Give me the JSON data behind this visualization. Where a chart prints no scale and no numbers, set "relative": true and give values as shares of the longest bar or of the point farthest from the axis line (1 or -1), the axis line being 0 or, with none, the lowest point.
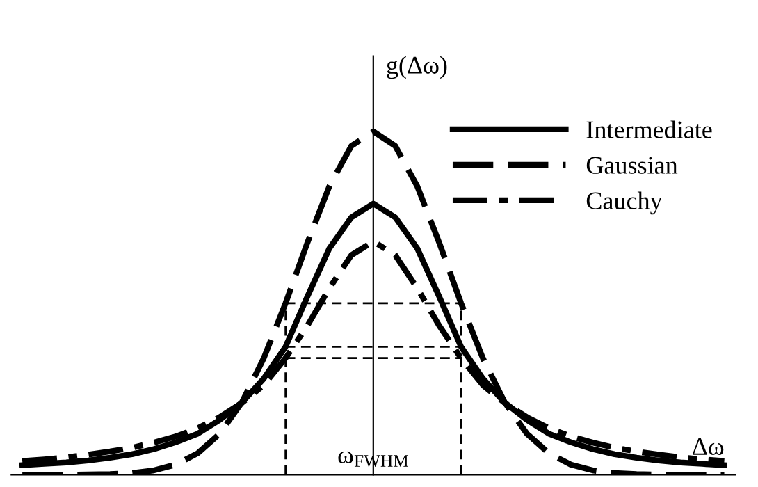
{
  "chart_data": {
    "type": "line",
    "relative": true,
    "xlabel": "Δω",
    "ylabel": "g(Δω)",
    "legend": "top right",
    "annotations": [
      "ω$_{FWHM}$"
    ],
    "categories": [
      null,
      null,
      null,
      null,
      null,
      null,
      null,
      null,
      null,
      null,
      null,
      null,
      null,
      null,
      null,
      null,
      null,
      null,
      null,
      null,
      null,
      null,
      null,
      null,
      null,
      null,
      null,
      null,
      null,
      null,
      null,
      null,
      null
    ],
    "series": [
      {
        "name": "Intermediate",
        "color": "#000000",
        "line_style": "solid",
        "values": [
          0.028,
          0.032,
          0.036,
          0.042,
          0.05,
          0.06,
          0.075,
          0.095,
          0.12,
          0.16,
          0.21,
          0.28,
          0.373,
          0.52,
          0.66,
          0.75,
          0.79,
          0.75,
          0.66,
          0.52,
          0.373,
          0.28,
          0.21,
          0.16,
          0.12,
          0.095,
          0.075,
          0.06,
          0.05,
          0.042,
          0.036,
          0.032,
          0.028
        ]
      },
      {
        "name": "Gaussian",
        "color": "#000000",
        "line_style": "dashed",
        "values": [
          0,
          0,
          0,
          0.001,
          0.002,
          0.005,
          0.013,
          0.03,
          0.063,
          0.12,
          0.21,
          0.339,
          0.5,
          0.677,
          0.841,
          0.958,
          1,
          0.958,
          0.841,
          0.677,
          0.5,
          0.339,
          0.21,
          0.12,
          0.063,
          0.03,
          0.013,
          0.005,
          0.002,
          0.001,
          0,
          0,
          0
        ]
      },
      {
        "name": "Cauchy",
        "color": "#000000",
        "line_style": "dashdot",
        "values": [
          0.04,
          0.045,
          0.051,
          0.059,
          0.068,
          0.079,
          0.094,
          0.112,
          0.136,
          0.168,
          0.209,
          0.261,
          0.34,
          0.435,
          0.544,
          0.64,
          0.68,
          0.64,
          0.544,
          0.435,
          0.34,
          0.261,
          0.209,
          0.168,
          0.136,
          0.112,
          0.094,
          0.079,
          0.068,
          0.059,
          0.051,
          0.045,
          0.04
        ]
      },
      {
        "color": "#000000",
        "line_style": "dashed",
        "values": [
          null,
          null,
          null,
          null,
          null,
          null,
          null,
          null,
          null,
          null,
          null,
          null,
          0.5,
          0.5,
          0.5,
          0.5,
          0.5,
          0.5,
          0.5,
          0.5,
          0.5,
          null,
          null,
          null,
          null,
          null,
          null,
          null,
          null,
          null,
          null,
          null,
          null
        ]
      },
      {
        "color": "#000000",
        "line_style": "dashed",
        "values": [
          null,
          null,
          null,
          null,
          null,
          null,
          null,
          null,
          null,
          null,
          null,
          null,
          0.373,
          0.373,
          0.373,
          0.373,
          0.373,
          0.373,
          0.373,
          0.373,
          0.373,
          null,
          null,
          null,
          null,
          null,
          null,
          null,
          null,
          null,
          null,
          null,
          null
        ]
      },
      {
        "color": "#000000",
        "line_style": "dashed",
        "values": [
          null,
          null,
          null,
          null,
          null,
          null,
          null,
          null,
          null,
          null,
          null,
          null,
          0.34,
          0.34,
          0.34,
          0.34,
          0.34,
          0.34,
          0.34,
          0.34,
          0.34,
          null,
          null,
          null,
          null,
          null,
          null,
          null,
          null,
          null,
          null,
          null,
          null
        ]
      }
    ]
  }
}
